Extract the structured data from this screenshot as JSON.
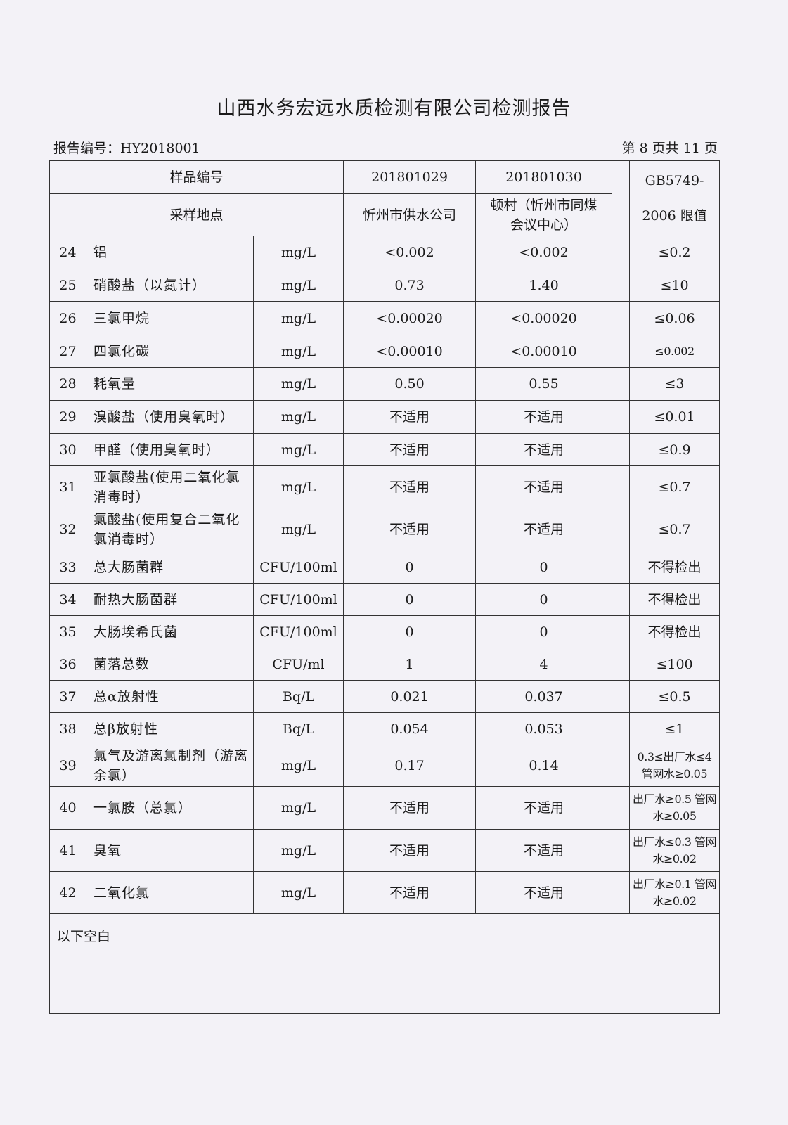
{
  "title": "山西水务宏远水质检测有限公司检测报告",
  "report_no": "报告编号：HY2018001",
  "page_info": "第 8 页共 11 页",
  "header": {
    "sample_no_label": "样品编号",
    "site_label": "采样地点",
    "sample1_no": "201801029",
    "sample2_no": "201801030",
    "sample1_site": "忻州市供水公司",
    "sample2_site": "顿村（忻州市同煤会议中心）",
    "limit_label": "GB5749-2006 限值"
  },
  "rows": [
    {
      "no": "24",
      "name": "铝",
      "unit": "mg/L",
      "s1": "<0.002",
      "s2": "<0.002",
      "limit": "≤0.2"
    },
    {
      "no": "25",
      "name": "硝酸盐（以氮计）",
      "unit": "mg/L",
      "s1": "0.73",
      "s2": "1.40",
      "limit": "≤10"
    },
    {
      "no": "26",
      "name": "三氯甲烷",
      "unit": "mg/L",
      "s1": "<0.00020",
      "s2": "<0.00020",
      "limit": "≤0.06"
    },
    {
      "no": "27",
      "name": "四氯化碳",
      "unit": "mg/L",
      "s1": "<0.00010",
      "s2": "<0.00010",
      "limit": "≤0.002"
    },
    {
      "no": "28",
      "name": "耗氧量",
      "unit": "mg/L",
      "s1": "0.50",
      "s2": "0.55",
      "limit": "≤3"
    },
    {
      "no": "29",
      "name": "溴酸盐（使用臭氧时）",
      "unit": "mg/L",
      "s1": "不适用",
      "s2": "不适用",
      "limit": "≤0.01"
    },
    {
      "no": "30",
      "name": "甲醛（使用臭氧时）",
      "unit": "mg/L",
      "s1": "不适用",
      "s2": "不适用",
      "limit": "≤0.9"
    },
    {
      "no": "31",
      "name": "亚氯酸盐(使用二氧化氯消毒时）",
      "unit": "mg/L",
      "s1": "不适用",
      "s2": "不适用",
      "limit": "≤0.7"
    },
    {
      "no": "32",
      "name": "氯酸盐(使用复合二氧化氯消毒时）",
      "unit": "mg/L",
      "s1": "不适用",
      "s2": "不适用",
      "limit": "≤0.7"
    },
    {
      "no": "33",
      "name": "总大肠菌群",
      "unit": "CFU/100ml",
      "s1": "0",
      "s2": "0",
      "limit": "不得检出"
    },
    {
      "no": "34",
      "name": "耐热大肠菌群",
      "unit": "CFU/100ml",
      "s1": "0",
      "s2": "0",
      "limit": "不得检出"
    },
    {
      "no": "35",
      "name": "大肠埃希氏菌",
      "unit": "CFU/100ml",
      "s1": "0",
      "s2": "0",
      "limit": "不得检出"
    },
    {
      "no": "36",
      "name": "菌落总数",
      "unit": "CFU/ml",
      "s1": "1",
      "s2": "4",
      "limit": "≤100"
    },
    {
      "no": "37",
      "name": "总α放射性",
      "unit": "Bq/L",
      "s1": "0.021",
      "s2": "0.037",
      "limit": "≤0.5"
    },
    {
      "no": "38",
      "name": "总β放射性",
      "unit": "Bq/L",
      "s1": "0.054",
      "s2": "0.053",
      "limit": "≤1"
    },
    {
      "no": "39",
      "name": "氯气及游离氯制剂（游离余氯）",
      "unit": "mg/L",
      "s1": "0.17",
      "s2": "0.14",
      "limit": "0.3≤出厂水≤4 管网水≥0.05"
    },
    {
      "no": "40",
      "name": "一氯胺（总氯）",
      "unit": "mg/L",
      "s1": "不适用",
      "s2": "不适用",
      "limit": "出厂水≥0.5 管网水≥0.05"
    },
    {
      "no": "41",
      "name": "臭氧",
      "unit": "mg/L",
      "s1": "不适用",
      "s2": "不适用",
      "limit": "出厂水≤0.3 管网水≥0.02"
    },
    {
      "no": "42",
      "name": "二氧化氯",
      "unit": "mg/L",
      "s1": "不适用",
      "s2": "不适用",
      "limit": "出厂水≥0.1 管网水≥0.02"
    }
  ],
  "footer_note": "以下空白"
}
